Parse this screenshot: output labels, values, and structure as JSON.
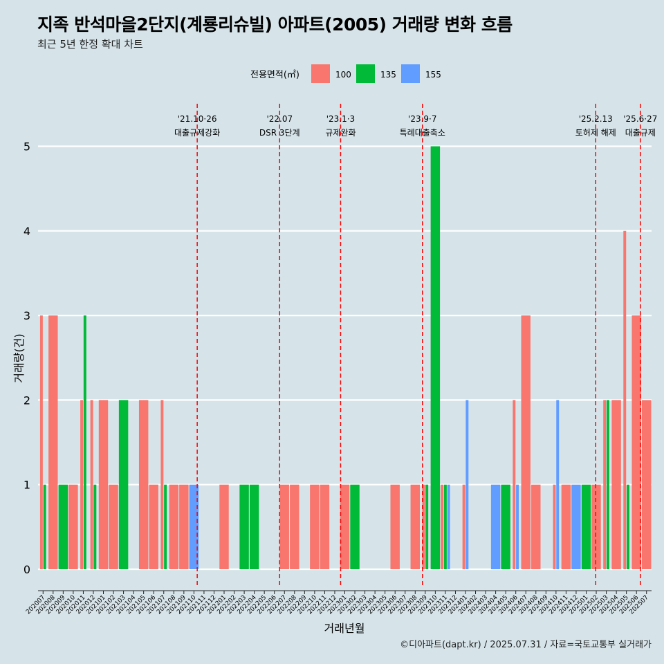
{
  "header": {
    "title": "지족 반석마을2단지(계룡리슈빌) 아파트(2005) 거래량 변화 흐름",
    "subtitle": "최근 5년 한정 확대 차트"
  },
  "caption": "©디아파트(dapt.kr) / 2025.07.31 / 자료=국토교통부 실거래가",
  "colors": {
    "100": "#f8766d",
    "135": "#00ba38",
    "155": "#619cff",
    "background": "#d6e4ea",
    "event_line": "#ff0000"
  },
  "chart_data": {
    "type": "bar",
    "title": "지족 반석마을2단지(계룡리슈빌) 아파트(2005) 거래량 변화 흐름",
    "subtitle": "최근 5년 한정 확대 차트",
    "xlabel": "거래년월",
    "ylabel": "거래량(건)",
    "ylim": [
      0,
      5
    ],
    "yticks": [
      0,
      1,
      2,
      3,
      4,
      5
    ],
    "grid": true,
    "legend": {
      "title": "전용면적(㎡)",
      "position": "top",
      "entries": [
        "100",
        "135",
        "155"
      ]
    },
    "categories": [
      "202007",
      "202008",
      "202009",
      "202010",
      "202011",
      "202012",
      "202101",
      "202102",
      "202103",
      "202104",
      "202105",
      "202106",
      "202107",
      "202108",
      "202109",
      "202110",
      "202111",
      "202112",
      "202201",
      "202202",
      "202203",
      "202204",
      "202205",
      "202206",
      "202207",
      "202208",
      "202209",
      "202210",
      "202211",
      "202212",
      "202301",
      "202302",
      "202303",
      "202304",
      "202305",
      "202306",
      "202307",
      "202308",
      "202309",
      "202310",
      "202311",
      "202312",
      "202401",
      "202402",
      "202403",
      "202404",
      "202405",
      "202406",
      "202407",
      "202408",
      "202409",
      "202410",
      "202411",
      "202412",
      "202501",
      "202502",
      "202503",
      "202504",
      "202505",
      "202506",
      "202507"
    ],
    "series": [
      {
        "name": "100",
        "values": [
          3,
          3,
          0,
          1,
          2,
          2,
          2,
          1,
          0,
          0,
          2,
          1,
          2,
          1,
          1,
          0,
          0,
          0,
          1,
          0,
          0,
          0,
          0,
          0,
          1,
          1,
          0,
          1,
          1,
          0,
          1,
          0,
          0,
          0,
          0,
          1,
          0,
          1,
          1,
          0,
          1,
          0,
          1,
          0,
          0,
          0,
          0,
          2,
          3,
          1,
          0,
          1,
          1,
          0,
          0,
          1,
          2,
          2,
          4,
          3,
          2
        ]
      },
      {
        "name": "135",
        "values": [
          1,
          0,
          1,
          0,
          3,
          1,
          0,
          0,
          2,
          0,
          0,
          0,
          1,
          0,
          0,
          0,
          0,
          0,
          0,
          0,
          1,
          1,
          0,
          0,
          0,
          0,
          0,
          0,
          0,
          0,
          0,
          1,
          0,
          0,
          0,
          0,
          0,
          0,
          1,
          5,
          1,
          0,
          0,
          0,
          0,
          0,
          1,
          0,
          0,
          0,
          0,
          0,
          0,
          0,
          1,
          0,
          2,
          0,
          1,
          0,
          0
        ]
      },
      {
        "name": "155",
        "values": [
          0,
          0,
          0,
          0,
          0,
          0,
          0,
          0,
          0,
          0,
          0,
          0,
          0,
          0,
          0,
          1,
          0,
          0,
          0,
          0,
          0,
          0,
          0,
          0,
          0,
          0,
          0,
          0,
          0,
          0,
          0,
          0,
          0,
          0,
          0,
          0,
          0,
          0,
          0,
          0,
          1,
          0,
          2,
          0,
          0,
          1,
          0,
          1,
          0,
          0,
          0,
          2,
          0,
          1,
          0,
          0,
          0,
          0,
          0,
          0,
          0
        ]
      }
    ],
    "events": [
      {
        "date": "2021-10-26",
        "label_top": "'21.10·26",
        "label_bottom": "대출규제강화"
      },
      {
        "date": "2022-07-01",
        "label_top": "'22.07",
        "label_bottom": "DSR 3단계"
      },
      {
        "date": "2023-01-03",
        "label_top": "'23.1·3",
        "label_bottom": "규제완화"
      },
      {
        "date": "2023-09-07",
        "label_top": "'23.9·7",
        "label_bottom": "특례대출축소"
      },
      {
        "date": "2025-02-13",
        "label_top": "'25.2.13",
        "label_bottom": "토허제 해제"
      },
      {
        "date": "2025-06-27",
        "label_top": "'25.6·27",
        "label_bottom": "대출규제"
      }
    ]
  }
}
